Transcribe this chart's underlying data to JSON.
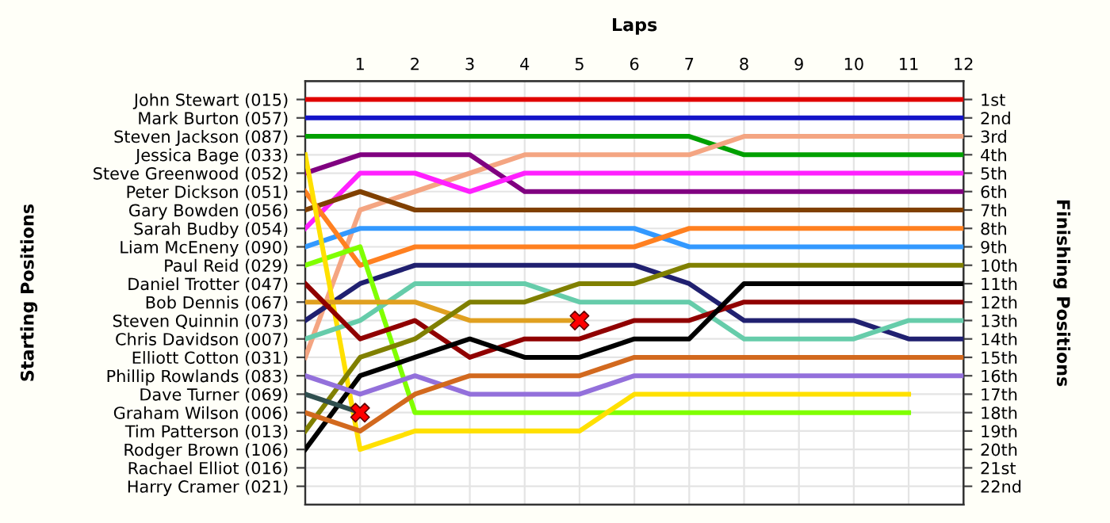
{
  "chart_data": {
    "type": "line",
    "xlabel": "Laps",
    "annotations": [
      "Starting Positions"
    ],
    "y2label": "Finishing Positions",
    "x": [
      0,
      1,
      2,
      3,
      4,
      5,
      6,
      7,
      8,
      9,
      10,
      11,
      12
    ],
    "xlim": [
      0,
      12
    ],
    "xticks": [
      1,
      2,
      3,
      4,
      5,
      6,
      7,
      8,
      9,
      10,
      11,
      12
    ],
    "y_categories": [
      "John Stewart (015)",
      "Mark Burton (057)",
      "Steven Jackson (087)",
      "Jessica Bage (033)",
      "Steve Greenwood (052)",
      "Peter Dickson (051)",
      "Gary Bowden (056)",
      "Sarah Budby (054)",
      "Liam McEneny (090)",
      "Paul Reid (029)",
      "Daniel Trotter (047)",
      "Bob Dennis (067)",
      "Steven Quinnin (073)",
      "Chris Davidson (007)",
      "Elliott Cotton (031)",
      "Phillip Rowlands (083)",
      "Dave Turner (069)",
      "Graham Wilson (006)",
      "Tim Patterson (013)",
      "Rodger Brown (106)",
      "Rachael Elliot (016)",
      "Harry Cramer (021)"
    ],
    "y2lim": [
      23,
      0
    ],
    "y2ticks": [
      {
        "value": 1,
        "label": "1st"
      },
      {
        "value": 2,
        "label": "2nd"
      },
      {
        "value": 3,
        "label": "3rd"
      },
      {
        "value": 4,
        "label": "4th"
      },
      {
        "value": 5,
        "label": "5th"
      },
      {
        "value": 6,
        "label": "6th"
      },
      {
        "value": 7,
        "label": "7th"
      },
      {
        "value": 8,
        "label": "8th"
      },
      {
        "value": 9,
        "label": "9th"
      },
      {
        "value": 10,
        "label": "10th"
      },
      {
        "value": 11,
        "label": "11th"
      },
      {
        "value": 12,
        "label": "12th"
      },
      {
        "value": 13,
        "label": "13th"
      },
      {
        "value": 14,
        "label": "14th"
      },
      {
        "value": 15,
        "label": "15th"
      },
      {
        "value": 16,
        "label": "16th"
      },
      {
        "value": 17,
        "label": "17th"
      },
      {
        "value": 18,
        "label": "18th"
      },
      {
        "value": 19,
        "label": "19th"
      },
      {
        "value": 20,
        "label": "20th"
      },
      {
        "value": 21,
        "label": "21st"
      },
      {
        "value": 22,
        "label": "22nd"
      }
    ],
    "grid": true,
    "series": [
      {
        "axis": "y2",
        "color": "#e00000",
        "values": [
          1,
          1,
          1,
          1,
          1,
          1,
          1,
          1,
          1,
          1,
          1,
          1,
          1
        ]
      },
      {
        "axis": "y2",
        "color": "#1414c8",
        "values": [
          2,
          2,
          2,
          2,
          2,
          2,
          2,
          2,
          2,
          2,
          2,
          2,
          2
        ]
      },
      {
        "axis": "y2",
        "color": "#00a000",
        "values": [
          3,
          3,
          3,
          3,
          3,
          3,
          3,
          3,
          4,
          4,
          4,
          4,
          4
        ]
      },
      {
        "axis": "y2",
        "color": "#f4a582",
        "values": [
          15,
          7,
          6,
          5,
          4,
          4,
          4,
          4,
          3,
          3,
          3,
          3,
          3
        ]
      },
      {
        "axis": "y2",
        "color": "#800080",
        "values": [
          5,
          4,
          4,
          4,
          6,
          6,
          6,
          6,
          6,
          6,
          6,
          6,
          6
        ]
      },
      {
        "axis": "y2",
        "color": "#ff20ff",
        "values": [
          8,
          5,
          5,
          6,
          5,
          5,
          5,
          5,
          5,
          5,
          5,
          5,
          5
        ]
      },
      {
        "axis": "y2",
        "color": "#804000",
        "values": [
          7,
          6,
          7,
          7,
          7,
          7,
          7,
          7,
          7,
          7,
          7,
          7,
          7
        ]
      },
      {
        "axis": "y2",
        "color": "#3399ff",
        "values": [
          9,
          8,
          8,
          8,
          8,
          8,
          8,
          9,
          9,
          9,
          9,
          9,
          9
        ]
      },
      {
        "axis": "y2",
        "color": "#ff8020",
        "values": [
          6,
          10,
          9,
          9,
          9,
          9,
          9,
          8,
          8,
          8,
          8,
          8,
          8
        ]
      },
      {
        "axis": "y2",
        "color": "#202070",
        "values": [
          13,
          11,
          10,
          10,
          10,
          10,
          10,
          11,
          13,
          13,
          13,
          14,
          14
        ]
      },
      {
        "axis": "y2",
        "color": "#80ff00",
        "values": [
          10,
          9,
          18,
          18,
          18,
          18,
          18,
          18,
          18,
          18,
          18,
          18,
          null
        ]
      },
      {
        "axis": "y2",
        "color": "#ffe000",
        "values": [
          4,
          20,
          19,
          19,
          19,
          19,
          17,
          17,
          17,
          17,
          17,
          17,
          null
        ]
      },
      {
        "axis": "y2",
        "color": "#66ccaa",
        "values": [
          14,
          13,
          11,
          11,
          11,
          12,
          12,
          12,
          14,
          14,
          14,
          13,
          13
        ]
      },
      {
        "axis": "y2",
        "color": "#e0a020",
        "values": [
          12,
          12,
          12,
          13,
          13,
          13,
          null,
          null,
          null,
          null,
          null,
          null,
          null
        ]
      },
      {
        "axis": "y2",
        "color": "#900000",
        "values": [
          11,
          14,
          13,
          15,
          14,
          14,
          13,
          13,
          12,
          12,
          12,
          12,
          12
        ]
      },
      {
        "axis": "y2",
        "color": "#000000",
        "values": [
          20,
          16,
          15,
          14,
          15,
          15,
          14,
          14,
          11,
          11,
          11,
          11,
          11
        ]
      },
      {
        "axis": "y2",
        "color": "#808000",
        "values": [
          19,
          15,
          14,
          12,
          12,
          11,
          11,
          10,
          10,
          10,
          10,
          10,
          10
        ]
      },
      {
        "axis": "y2",
        "color": "#9370db",
        "values": [
          16,
          17,
          16,
          17,
          17,
          17,
          16,
          16,
          16,
          16,
          16,
          16,
          16
        ]
      },
      {
        "axis": "y2",
        "color": "#2f4f4f",
        "values": [
          17,
          18,
          null,
          null,
          null,
          null,
          null,
          null,
          null,
          null,
          null,
          null,
          null
        ]
      },
      {
        "axis": "y2",
        "color": "#d2691e",
        "values": [
          18,
          19,
          17,
          16,
          16,
          16,
          15,
          15,
          15,
          15,
          15,
          15,
          15
        ]
      },
      {
        "axis": "y2",
        "type": "scatter",
        "marker": "cross",
        "color": "#ff0000",
        "x": [
          5,
          1
        ],
        "values": [
          13,
          18
        ]
      }
    ]
  }
}
